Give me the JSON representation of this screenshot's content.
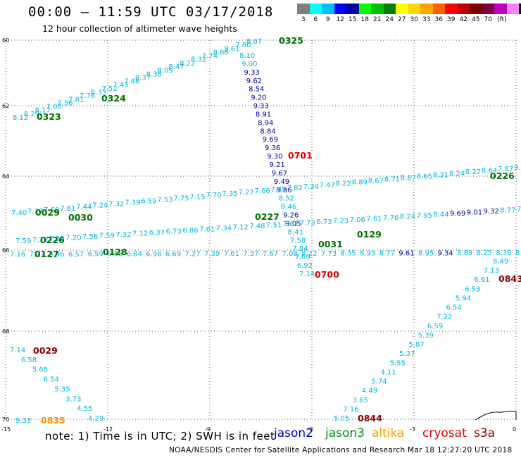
{
  "header": {
    "title": "00:00 – 11:59 UTC 03/17/2018",
    "subtitle": "12 hour collection of altimeter wave heights"
  },
  "scale": {
    "colors": [
      "#7f7f7f",
      "#00ffff",
      "#00bfff",
      "#0000ff",
      "#0000a0",
      "#00ff00",
      "#00c000",
      "#008000",
      "#ffff00",
      "#ffd700",
      "#ffa500",
      "#ff6000",
      "#ff0000",
      "#c00000",
      "#800000",
      "#800040",
      "#c000c0",
      "#ff80ff",
      "#000000"
    ],
    "labels": [
      "3",
      "6",
      "9",
      "12",
      "15",
      "18",
      "21",
      "24",
      "27",
      "30",
      "33",
      "36",
      "39",
      "42",
      "45",
      "70",
      "(ft)"
    ]
  },
  "axes": {
    "lat_labels": [
      "60",
      "62",
      "64",
      "66",
      "68",
      "70"
    ],
    "lon_labels": [
      "-15",
      "-12",
      "-9",
      "-6",
      "-3",
      "0"
    ]
  },
  "colors": {
    "jason2": "#0000a0",
    "jason3": "#007000",
    "altika": "#ff8c00",
    "cryosat": "#e00000",
    "s3a": "#8b0000",
    "cyan": "#00b4e6"
  },
  "passes": [
    {
      "time": "0325",
      "sat": "jason3"
    },
    {
      "time": "0324",
      "sat": "jason3"
    },
    {
      "time": "0323",
      "sat": "jason3"
    },
    {
      "time": "0701",
      "sat": "cryosat"
    },
    {
      "time": "0226",
      "sat": "jason3"
    },
    {
      "time": "0029",
      "sat": "jason3"
    },
    {
      "time": "0030",
      "sat": "jason3"
    },
    {
      "time": "0227",
      "sat": "jason3"
    },
    {
      "time": "0129",
      "sat": "jason3"
    },
    {
      "time": "0226",
      "sat": "jason3"
    },
    {
      "time": "0031",
      "sat": "jason3"
    },
    {
      "time": "0127",
      "sat": "jason3"
    },
    {
      "time": "0128",
      "sat": "jason3"
    },
    {
      "time": "0700",
      "sat": "cryosat"
    },
    {
      "time": "0843",
      "sat": "s3a"
    },
    {
      "time": "0029",
      "sat": "s3a"
    },
    {
      "time": "0835",
      "sat": "altika"
    },
    {
      "time": "0844",
      "sat": "s3a"
    }
  ],
  "track_a": {
    "sat": "jason3",
    "labels": [
      "8.12",
      "8.29",
      "8.17",
      "7.60",
      "7.36",
      "7.81",
      "7.76",
      "8.33",
      "7.52",
      "7.43",
      "7.46",
      "8.37",
      "8.38",
      "8.09",
      "8.47",
      "8.22",
      "8.32",
      "7.74",
      "8.66",
      "8.61",
      "7.80",
      "8.67"
    ]
  },
  "track_b": {
    "sat": "jason2",
    "labels": [
      "8.10",
      "9.00",
      "9.33",
      "9.62",
      "8.54",
      "9.20",
      "9.33",
      "8.91",
      "8.94",
      "8.84",
      "9.69",
      "9.36",
      "9.30",
      "9.21",
      "9.67",
      "9.49",
      "9.06",
      "8.52",
      "8.46",
      "9.26",
      "9.05",
      "8.41",
      "7.58",
      "7.84",
      "7.69",
      "6.92",
      "7.14"
    ]
  },
  "track_c": {
    "sat": "jason3",
    "labels": [
      "7.40",
      "7.27",
      "7.60",
      "7.81",
      "7.44",
      "7.24",
      "7.32",
      "7.39",
      "6.59",
      "7.53",
      "7.75",
      "7.15",
      "7.70",
      "7.35",
      "7.27",
      "7.66",
      "7.49",
      "7.82",
      "7.34",
      "7.47",
      "8.22",
      "8.89",
      "8.67",
      "8.71",
      "8.87",
      "8.65",
      "8.21",
      "8.24",
      "8.27",
      "8.64",
      "7.87",
      "9.9"
    ]
  },
  "track_d": {
    "sat": "jason3",
    "labels": [
      "7.59",
      "7.23",
      "7.29",
      "7.20",
      "7.56",
      "7.59",
      "7.32",
      "7.12",
      "6.37",
      "6.73",
      "6.86",
      "7.61",
      "7.34",
      "7.12",
      "7.48",
      "7.51",
      "7.67",
      "7.73",
      "6.73",
      "7.23",
      "7.06",
      "7.61",
      "7.76",
      "8.24",
      "7.95",
      "8.44",
      "9.69",
      "9.01",
      "9.32",
      "8.77",
      "7"
    ]
  },
  "track_e": {
    "sat": "jason3",
    "labels": [
      "7.16",
      "7.27",
      "6.96",
      "6.57",
      "6.59",
      "6.58",
      "6.84",
      "6.98",
      "6.69",
      "7.27",
      "7.39",
      "7.61",
      "7.37",
      "7.67",
      "7.08",
      "8.22",
      "7.73",
      "8.35",
      "8.93",
      "8.77",
      "9.61",
      "8.95",
      "9.34",
      "8.89",
      "8.25",
      "8.36",
      "8"
    ]
  },
  "track_f": {
    "sat": "s3a",
    "labels": [
      "8.49",
      "7.13",
      "6.61",
      "6.53",
      "5.94",
      "6.54",
      "7.22",
      "6.59",
      "5.39",
      "5.87",
      "5.37",
      "5.55",
      "4.11",
      "5.74",
      "4.49",
      "3.65",
      "7.16",
      "5.05"
    ]
  },
  "track_g": {
    "sat": "s3a",
    "labels": [
      "7.14",
      "6.58",
      "5.68",
      "6.54",
      "5.35",
      "3.73",
      "4.55",
      "4.29"
    ]
  },
  "track_h": {
    "sat": "altika",
    "labels": [
      "9.33"
    ]
  },
  "legend": {
    "note": "note:  1) Time is in UTC;  2) SWH is in feet",
    "satellites": [
      {
        "name": "jason2",
        "color": "#0000c8"
      },
      {
        "name": "jason3",
        "color": "#009000"
      },
      {
        "name": "altika",
        "color": "#ff9900"
      },
      {
        "name": "cryosat",
        "color": "#e00000"
      },
      {
        "name": "s3a",
        "color": "#8b0000"
      }
    ]
  },
  "footer": "NOAA/NESDIS Center for Satellite Applications and Research    Mar 18 12:27:20 UTC 2018"
}
